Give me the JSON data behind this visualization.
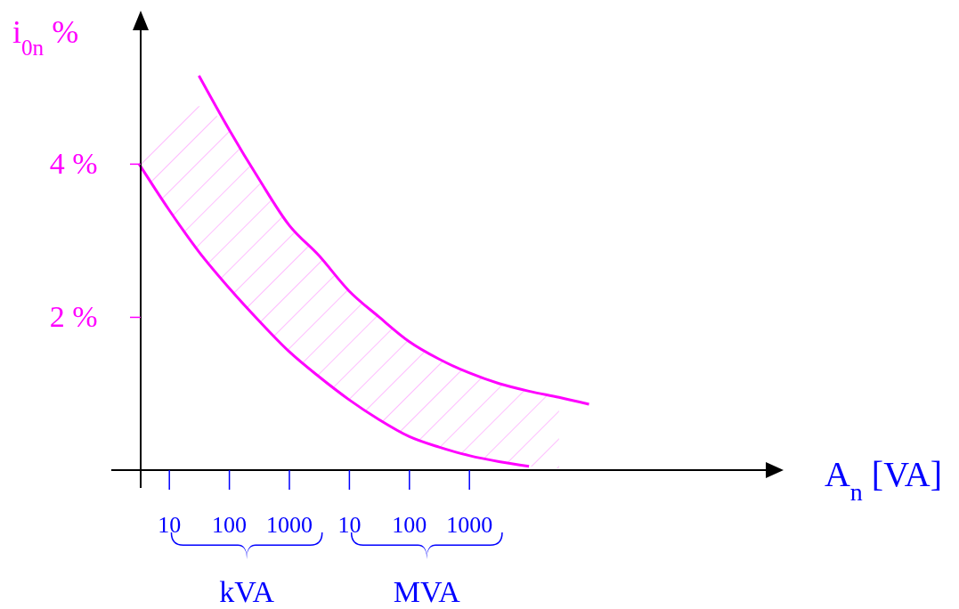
{
  "chart_data": {
    "type": "line",
    "xlabel": "A$_{n}$ [VA]",
    "ylabel": "i$_{0n}$ %",
    "ylim": [
      0,
      5.8
    ],
    "categories": [
      null,
      "10",
      null,
      "100",
      null,
      "1000",
      null,
      "10",
      null,
      "100",
      null,
      "1000",
      null,
      null,
      null,
      null,
      null,
      null,
      null,
      null,
      null
    ],
    "yticks": [
      {
        "value": 2,
        "label": "2 %"
      },
      {
        "value": 4,
        "label": "4 %"
      }
    ],
    "annotations": [
      "kVA",
      "MVA"
    ],
    "grid": false,
    "legend": false,
    "marker": "none",
    "line_style": "solid",
    "series": [
      {
        "color": "#ff00ff",
        "values": [
          4.0,
          3.4,
          2.85,
          2.38,
          1.95,
          1.55,
          1.22,
          0.92,
          0.66,
          0.44,
          0.3,
          0.19,
          0.11,
          0.05,
          null,
          null,
          null,
          null,
          null,
          null,
          null
        ]
      },
      {
        "color": "#ff00ff",
        "values": [
          null,
          null,
          5.15,
          4.45,
          3.8,
          3.2,
          2.8,
          2.34,
          2.0,
          1.68,
          1.45,
          1.27,
          1.13,
          1.03,
          0.95,
          0.86,
          null,
          null,
          null,
          null,
          null
        ],
        "lower": [
          4.0,
          3.4,
          2.85,
          2.38,
          1.95,
          1.55,
          1.22,
          0.92,
          0.66,
          0.44,
          0.3,
          0.19,
          0.11,
          0.05,
          0.02,
          null,
          null,
          null,
          null,
          null,
          null
        ],
        "upper": [
          4.0,
          4.55,
          4.75,
          4.45,
          3.8,
          3.2,
          2.8,
          2.34,
          2.0,
          1.68,
          1.45,
          1.27,
          1.13,
          1.03,
          0.95,
          null,
          null,
          null,
          null,
          null,
          null
        ]
      }
    ]
  }
}
